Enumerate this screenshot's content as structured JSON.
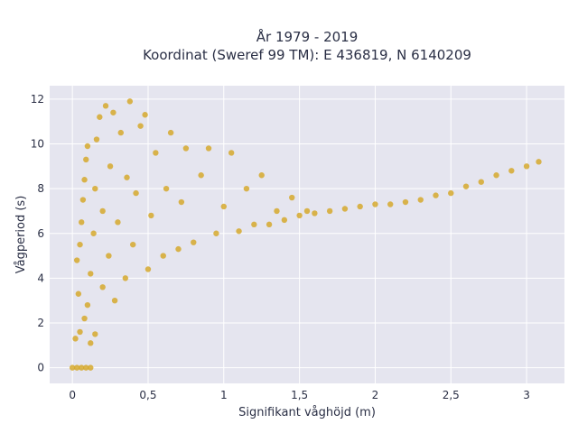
{
  "chart_data": {
    "type": "scatter",
    "title_line1": "År 1979 - 2019",
    "title_line2": "Koordinat (Sweref 99 TM): E 436819, N 6140209",
    "xlabel": "Signifikant våghöjd (m)",
    "ylabel": "Vågperiod (s)",
    "xlim": [
      -0.15,
      3.25
    ],
    "ylim": [
      -0.7,
      12.6
    ],
    "x_ticks": [
      0,
      0.5,
      1,
      1.5,
      2,
      2.5,
      3
    ],
    "x_tick_labels": [
      "0",
      "0,5",
      "1",
      "1,5",
      "2",
      "2,5",
      "3"
    ],
    "y_ticks": [
      0,
      2,
      4,
      6,
      8,
      10,
      12
    ],
    "y_tick_labels": [
      "0",
      "2",
      "4",
      "6",
      "8",
      "10",
      "12"
    ],
    "grid": true,
    "marker_color": "#d4a520",
    "plot_background": "#e5e5ef",
    "series": [
      {
        "points": [
          [
            0.0,
            0.0
          ],
          [
            0.03,
            0.0
          ],
          [
            0.06,
            0.0
          ],
          [
            0.09,
            0.0
          ],
          [
            0.12,
            0.0
          ],
          [
            0.02,
            1.3
          ],
          [
            0.05,
            1.6
          ],
          [
            0.08,
            2.2
          ],
          [
            0.1,
            2.8
          ],
          [
            0.12,
            1.1
          ],
          [
            0.15,
            1.5
          ],
          [
            0.04,
            3.3
          ],
          [
            0.03,
            4.8
          ],
          [
            0.05,
            5.5
          ],
          [
            0.06,
            6.5
          ],
          [
            0.07,
            7.5
          ],
          [
            0.08,
            8.4
          ],
          [
            0.09,
            9.3
          ],
          [
            0.1,
            9.9
          ],
          [
            0.12,
            4.2
          ],
          [
            0.14,
            6.0
          ],
          [
            0.15,
            8.0
          ],
          [
            0.16,
            10.2
          ],
          [
            0.18,
            11.2
          ],
          [
            0.2,
            3.6
          ],
          [
            0.2,
            7.0
          ],
          [
            0.22,
            11.7
          ],
          [
            0.24,
            5.0
          ],
          [
            0.25,
            9.0
          ],
          [
            0.27,
            11.4
          ],
          [
            0.28,
            3.0
          ],
          [
            0.3,
            6.5
          ],
          [
            0.32,
            10.5
          ],
          [
            0.35,
            4.0
          ],
          [
            0.36,
            8.5
          ],
          [
            0.38,
            11.9
          ],
          [
            0.4,
            5.5
          ],
          [
            0.42,
            7.8
          ],
          [
            0.45,
            10.8
          ],
          [
            0.48,
            11.3
          ],
          [
            0.5,
            4.4
          ],
          [
            0.52,
            6.8
          ],
          [
            0.55,
            9.6
          ],
          [
            0.6,
            5.0
          ],
          [
            0.62,
            8.0
          ],
          [
            0.65,
            10.5
          ],
          [
            0.7,
            5.3
          ],
          [
            0.72,
            7.4
          ],
          [
            0.75,
            9.8
          ],
          [
            0.8,
            5.6
          ],
          [
            0.85,
            8.6
          ],
          [
            0.9,
            9.8
          ],
          [
            0.95,
            6.0
          ],
          [
            1.0,
            7.2
          ],
          [
            1.05,
            9.6
          ],
          [
            1.1,
            6.1
          ],
          [
            1.15,
            8.0
          ],
          [
            1.2,
            6.4
          ],
          [
            1.25,
            8.6
          ],
          [
            1.3,
            6.4
          ],
          [
            1.35,
            7.0
          ],
          [
            1.4,
            6.6
          ],
          [
            1.45,
            7.6
          ],
          [
            1.5,
            6.8
          ],
          [
            1.55,
            7.0
          ],
          [
            1.6,
            6.9
          ],
          [
            1.7,
            7.0
          ],
          [
            1.8,
            7.1
          ],
          [
            1.9,
            7.2
          ],
          [
            2.0,
            7.3
          ],
          [
            2.1,
            7.3
          ],
          [
            2.2,
            7.4
          ],
          [
            2.3,
            7.5
          ],
          [
            2.4,
            7.7
          ],
          [
            2.5,
            7.8
          ],
          [
            2.6,
            8.1
          ],
          [
            2.7,
            8.3
          ],
          [
            2.8,
            8.6
          ],
          [
            2.9,
            8.8
          ],
          [
            3.0,
            9.0
          ],
          [
            3.08,
            9.2
          ]
        ]
      }
    ]
  }
}
